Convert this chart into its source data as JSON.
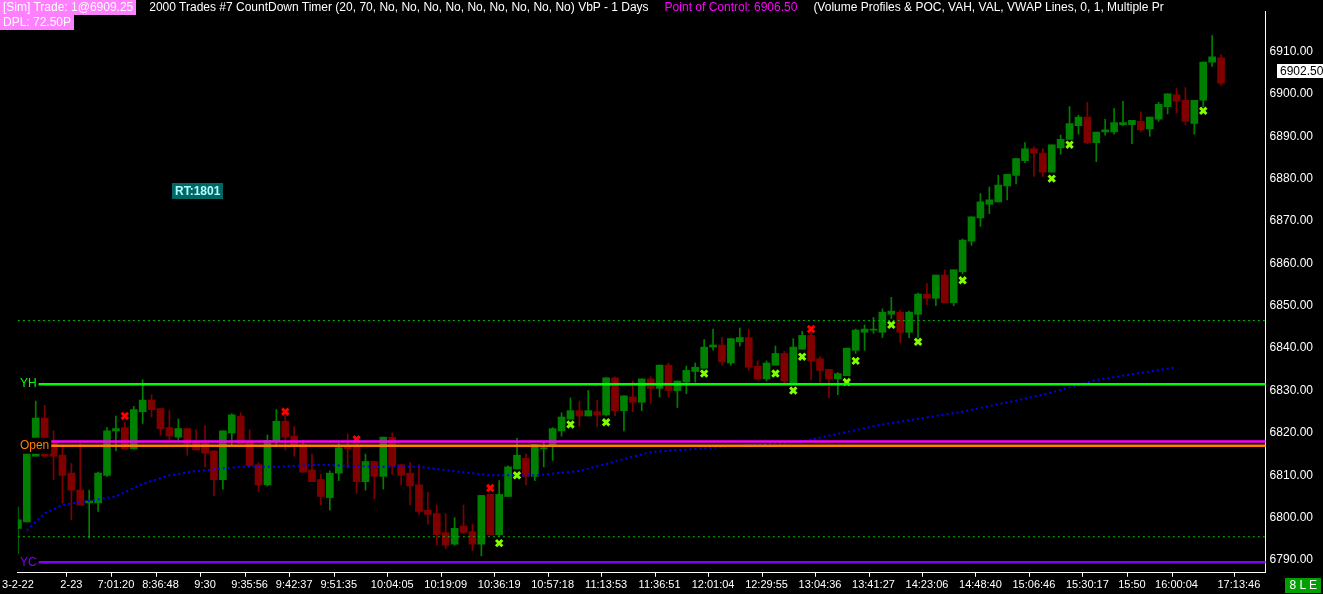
{
  "chart_data": {
    "type": "candlestick",
    "categories": [
      "3-2-22",
      null,
      null,
      null,
      null,
      null,
      "2-23",
      null,
      null,
      null,
      null,
      "7:01:20",
      null,
      null,
      null,
      null,
      "8:36:48",
      null,
      null,
      null,
      null,
      "9:30",
      null,
      null,
      null,
      null,
      "9:35:56",
      null,
      null,
      null,
      null,
      "9:42:37",
      null,
      null,
      null,
      null,
      "9:51:35",
      null,
      null,
      null,
      null,
      null,
      "10:04:05",
      null,
      null,
      null,
      null,
      null,
      "10:19:09",
      null,
      null,
      null,
      null,
      null,
      "10:36:19",
      null,
      null,
      null,
      null,
      null,
      "10:57:18",
      null,
      null,
      null,
      null,
      null,
      "11:13:53",
      null,
      null,
      null,
      null,
      null,
      "11:36:51",
      null,
      null,
      null,
      null,
      null,
      "12:01:04",
      null,
      null,
      null,
      null,
      null,
      "12:29:55",
      null,
      null,
      null,
      null,
      null,
      "13:04:36",
      null,
      null,
      null,
      null,
      null,
      "13:41:27",
      null,
      null,
      null,
      null,
      null,
      "14:23:06",
      null,
      null,
      null,
      null,
      null,
      "14:48:40",
      null,
      null,
      null,
      null,
      null,
      "15:06:46",
      null,
      null,
      null,
      null,
      null,
      "15:30:17",
      null,
      null,
      null,
      null,
      "15:50",
      null,
      null,
      null,
      null,
      "16:00:04",
      null,
      null,
      null,
      null,
      null,
      null,
      "17:13:46",
      null,
      null,
      null
    ],
    "series": [
      {
        "colors": [
          "#008000",
          "#008000",
          "#008000",
          "#800000",
          "#800000",
          "#800000",
          "#800000",
          "#800000",
          "#008000",
          "#008000",
          "#008000",
          "#008000",
          "#800000",
          "#008000",
          "#008000",
          "#800000",
          "#800000",
          "#800000",
          "#008000",
          "#800000",
          "#800000",
          "#800000",
          "#800000",
          "#008000",
          "#008000",
          "#800000",
          "#800000",
          "#800000",
          "#008000",
          "#008000",
          "#800000",
          "#800000",
          "#800000",
          "#800000",
          "#800000",
          "#008000",
          "#008000",
          "#800000",
          "#800000",
          "#008000",
          "#800000",
          "#008000",
          "#800000",
          "#800000",
          "#800000",
          "#800000",
          "#800000",
          "#800000",
          "#800000",
          "#008000",
          "#800000",
          "#800000",
          "#008000",
          "#800000",
          "#008000",
          "#008000",
          "#008000",
          "#800000",
          "#008000",
          "#008000",
          "#008000",
          "#008000",
          "#008000",
          "#800000",
          "#008000",
          "#800000",
          "#008000",
          "#800000",
          "#008000",
          "#800000",
          "#008000",
          "#800000",
          "#008000",
          "#800000",
          "#008000",
          "#008000",
          "#008000",
          "#008000",
          "#008000",
          "#800000",
          "#008000",
          "#008000",
          "#800000",
          "#800000",
          "#008000",
          "#008000",
          "#800000",
          "#008000",
          "#008000",
          "#800000",
          "#800000",
          "#800000",
          "#008000",
          "#008000",
          "#008000",
          "#008000",
          "#008000",
          "#008000",
          "#008000",
          "#800000",
          "#008000",
          "#008000",
          "#800000",
          "#008000",
          "#800000",
          "#008000",
          "#008000",
          "#008000",
          "#008000",
          "#008000",
          "#008000",
          "#008000",
          "#008000",
          "#008000",
          "#800000",
          "#800000",
          "#008000",
          "#008000",
          "#008000",
          "#008000",
          "#800000",
          "#008000",
          "#008000",
          "#008000",
          "#008000",
          "#008000",
          "#800000",
          "#008000",
          "#008000",
          "#008000",
          "#800000",
          "#800000",
          "#008000",
          "#008000",
          "#008000",
          "#800000",
          null,
          null,
          null,
          null,
          null
        ],
        "ohlc": [
          [
            6797.5,
            6802.5,
            6791,
            6799.5
          ],
          [
            6799,
            6815.5,
            6799,
            6815.5
          ],
          [
            6814.5,
            6827.5,
            6814.5,
            6823.5
          ],
          [
            6823.5,
            6826.5,
            6814.5,
            6814.5
          ],
          [
            6817.5,
            6820.5,
            6809,
            6814.5
          ],
          [
            6814.75,
            6816.75,
            6803.5,
            6810
          ],
          [
            6810.5,
            6812.75,
            6799.5,
            6806.5
          ],
          [
            6806.5,
            6817.5,
            6803,
            6803
          ],
          [
            6803.5,
            6806.5,
            6795.25,
            6804
          ],
          [
            6803.5,
            6810.75,
            6801.5,
            6810.5
          ],
          [
            6810,
            6821.25,
            6809.75,
            6820.5
          ],
          [
            6820.5,
            6824,
            6815.75,
            6821
          ],
          [
            6821.25,
            6822.5,
            6816.25,
            6816.25
          ],
          [
            6816.25,
            6826.25,
            6816.25,
            6825.5
          ],
          [
            6825,
            6832.5,
            6822.25,
            6827.75
          ],
          [
            6827.75,
            6829,
            6823.75,
            6825.5
          ],
          [
            6825.75,
            6825.75,
            6819.5,
            6821
          ],
          [
            6821.25,
            6825.25,
            6818.25,
            6819.25
          ],
          [
            6819,
            6823.25,
            6818.25,
            6821
          ],
          [
            6821,
            6821,
            6814.75,
            6817.5
          ],
          [
            6818,
            6820.75,
            6816,
            6816
          ],
          [
            6817.5,
            6821.75,
            6812,
            6815.25
          ],
          [
            6815.75,
            6815.75,
            6805.25,
            6809
          ],
          [
            6809,
            6820.5,
            6806.75,
            6820.5
          ],
          [
            6820,
            6824.5,
            6817.25,
            6824.25
          ],
          [
            6824,
            6824.75,
            6817.5,
            6817.5
          ],
          [
            6818,
            6820.75,
            6812.25,
            6812.25
          ],
          [
            6812.5,
            6813,
            6806.25,
            6807.75
          ],
          [
            6807.75,
            6819.5,
            6807.5,
            6818.25
          ],
          [
            6818,
            6825.5,
            6817.25,
            6822.75
          ],
          [
            6822.75,
            6824,
            6816,
            6819
          ],
          [
            6819.25,
            6821.5,
            6814.5,
            6817.25
          ],
          [
            6817.25,
            6818.25,
            6810.75,
            6810.75
          ],
          [
            6811.25,
            6815,
            6808.5,
            6808.5
          ],
          [
            6809,
            6810.25,
            6803,
            6805
          ],
          [
            6804.75,
            6811,
            6801.75,
            6810.5
          ],
          [
            6810.5,
            6817.5,
            6808.75,
            6816.5
          ],
          [
            6816.75,
            6819.75,
            6811.75,
            6816.25
          ],
          [
            6816.75,
            6817.5,
            6805.75,
            6808.5
          ],
          [
            6808.5,
            6815,
            6806.5,
            6813.25
          ],
          [
            6813.25,
            6813.25,
            6804.5,
            6809.75
          ],
          [
            6809.75,
            6819,
            6806.75,
            6819
          ],
          [
            6819,
            6820,
            6810.25,
            6812.25
          ],
          [
            6812.5,
            6812.5,
            6807.75,
            6810
          ],
          [
            6810.5,
            6813,
            6803,
            6807.5
          ],
          [
            6807.75,
            6812.5,
            6800.75,
            6801.5
          ],
          [
            6801.75,
            6806,
            6798.5,
            6800.75
          ],
          [
            6801,
            6803,
            6793.5,
            6796
          ],
          [
            6796.5,
            6801,
            6792.75,
            6793.5
          ],
          [
            6793.75,
            6800,
            6793.5,
            6797.5
          ],
          [
            6798,
            6803,
            6796.25,
            6796.5
          ],
          [
            6796.75,
            6798.5,
            6792.25,
            6793.75
          ],
          [
            6793.75,
            6805.25,
            6791,
            6805.25
          ],
          [
            6805.5,
            6805.5,
            6796,
            6796
          ],
          [
            6796,
            6808.75,
            6795.5,
            6805.5
          ],
          [
            6805,
            6812.25,
            6805,
            6812
          ],
          [
            6811.5,
            6818.75,
            6811.5,
            6814.75
          ],
          [
            6814,
            6815,
            6807.75,
            6809.75
          ],
          [
            6809.75,
            6817.25,
            6808.75,
            6817.25
          ],
          [
            6816.25,
            6818,
            6812,
            6816.5
          ],
          [
            6817.25,
            6821.25,
            6813.5,
            6821
          ],
          [
            6820.5,
            6824.75,
            6819.25,
            6823.75
          ],
          [
            6823.25,
            6828.25,
            6823.25,
            6825.25
          ],
          [
            6825.25,
            6827.5,
            6821.5,
            6824
          ],
          [
            6824,
            6830,
            6824,
            6825.25
          ],
          [
            6825,
            6827.75,
            6821.5,
            6824.25
          ],
          [
            6824.25,
            6833,
            6824,
            6833
          ],
          [
            6833,
            6833.25,
            6824,
            6825.25
          ],
          [
            6825.25,
            6828.75,
            6820.5,
            6828.75
          ],
          [
            6828.5,
            6832.25,
            6825,
            6827.25
          ],
          [
            6827.25,
            6832.75,
            6825.25,
            6832.75
          ],
          [
            6832.75,
            6833.25,
            6827,
            6830.5
          ],
          [
            6830.5,
            6836,
            6828.5,
            6836
          ],
          [
            6836,
            6836.5,
            6828.5,
            6830
          ],
          [
            6830,
            6832.25,
            6826,
            6832.25
          ],
          [
            6832,
            6835.75,
            6829.25,
            6834.75
          ],
          [
            6834.5,
            6836.5,
            6832,
            6835.5
          ],
          [
            6835.25,
            6842,
            6835.25,
            6840.25
          ],
          [
            6840.25,
            6844.5,
            6839.5,
            6840.75
          ],
          [
            6840.75,
            6842.5,
            6836,
            6836.75
          ],
          [
            6836.5,
            6842.25,
            6836,
            6842.25
          ],
          [
            6841.5,
            6844.75,
            6840.5,
            6842.5
          ],
          [
            6842.5,
            6844.5,
            6834.75,
            6835.5
          ],
          [
            6835.75,
            6837,
            6832.5,
            6832.75
          ],
          [
            6832.75,
            6837,
            6832.25,
            6836.5
          ],
          [
            6836,
            6840.5,
            6836,
            6838.75
          ],
          [
            6838.75,
            6839.25,
            6831.75,
            6832.25
          ],
          [
            6831.75,
            6842.25,
            6831.5,
            6840.25
          ],
          [
            6839.75,
            6844,
            6839.75,
            6843
          ],
          [
            6843,
            6843.75,
            6832.5,
            6837
          ],
          [
            6837.5,
            6838,
            6832,
            6834.75
          ],
          [
            6835,
            6835,
            6828.25,
            6832.75
          ],
          [
            6832.75,
            6834.25,
            6829,
            6834
          ],
          [
            6833.5,
            6840,
            6833.5,
            6840
          ],
          [
            6839.5,
            6844.5,
            6838.75,
            6844.25
          ],
          [
            6843.75,
            6845.5,
            6839.5,
            6844.5
          ],
          [
            6844.25,
            6847.25,
            6843.5,
            6844.5
          ],
          [
            6843.75,
            6849.25,
            6842.5,
            6848.5
          ],
          [
            6848,
            6852,
            6847,
            6848.75
          ],
          [
            6848.5,
            6849,
            6841.25,
            6843.75
          ],
          [
            6843.75,
            6848.75,
            6842.5,
            6848.5
          ],
          [
            6848,
            6853,
            6842.5,
            6852.75
          ],
          [
            6852.75,
            6855.25,
            6850.25,
            6851.75
          ],
          [
            6851.75,
            6857.25,
            6850,
            6857.25
          ],
          [
            6857.25,
            6858.5,
            6850.75,
            6850.75
          ],
          [
            6850.75,
            6858.5,
            6850,
            6858.5
          ],
          [
            6858,
            6865.75,
            6857.5,
            6865.5
          ],
          [
            6865.25,
            6871,
            6864.25,
            6871
          ],
          [
            6870.75,
            6876.5,
            6868.75,
            6874.5
          ],
          [
            6874,
            6878,
            6871.75,
            6875
          ],
          [
            6874.5,
            6880.75,
            6874.5,
            6878.5
          ],
          [
            6878.25,
            6881,
            6875,
            6881
          ],
          [
            6880.75,
            6884.75,
            6878.75,
            6884.75
          ],
          [
            6884.25,
            6888.5,
            6883.75,
            6887
          ],
          [
            6887,
            6887.5,
            6880.5,
            6886
          ],
          [
            6886,
            6887,
            6880.5,
            6881.5
          ],
          [
            6881.5,
            6888,
            6881.5,
            6888
          ],
          [
            6887.25,
            6890.25,
            6885.75,
            6889.25
          ],
          [
            6889.25,
            6897,
            6889.25,
            6893
          ],
          [
            6892.5,
            6895,
            6890.5,
            6894.5
          ],
          [
            6894.5,
            6898,
            6888.25,
            6888.5
          ],
          [
            6888.5,
            6891,
            6884,
            6891
          ],
          [
            6891,
            6894,
            6890.25,
            6891.5
          ],
          [
            6891,
            6896.5,
            6890.5,
            6893.25
          ],
          [
            6892.75,
            6898.25,
            6892.5,
            6893.25
          ],
          [
            6892.75,
            6893.75,
            6888.25,
            6893.75
          ],
          [
            6893.5,
            6895.75,
            6891,
            6891.5
          ],
          [
            6891.75,
            6894.5,
            6890,
            6894.5
          ],
          [
            6894,
            6898,
            6893.5,
            6897.5
          ],
          [
            6897,
            6900,
            6895.25,
            6900
          ],
          [
            6899.75,
            6901.25,
            6895.5,
            6898.25
          ],
          [
            6898.5,
            6901.5,
            6892.75,
            6893.5
          ],
          [
            6893,
            6898.5,
            6890.5,
            6898.5
          ],
          [
            6898.5,
            6907.5,
            6897,
            6907.5
          ],
          [
            6907.5,
            6913.75,
            6906.5,
            6908.75
          ],
          [
            6908.5,
            6909.25,
            6902,
            6902.5
          ],
          null,
          null,
          null,
          null,
          null
        ]
      },
      {
        "type": "line",
        "color": "#0000ff",
        "line_style": "dotted",
        "marker": "none",
        "values": [
          null,
          6797,
          null,
          6801,
          null,
          6803,
          null,
          null,
          6804,
          null,
          null,
          6805,
          null,
          null,
          6808,
          null,
          null,
          6810,
          null,
          null,
          6811,
          null,
          null,
          null,
          null,
          6812,
          null,
          null,
          null,
          6812,
          null,
          null,
          null,
          null,
          6812.5,
          null,
          null,
          null,
          null,
          null,
          6812,
          null,
          null,
          null,
          null,
          6812,
          null,
          null,
          null,
          6811,
          null,
          null,
          null,
          6810,
          null,
          null,
          null,
          null,
          6810,
          null,
          null,
          null,
          null,
          6811,
          null,
          null,
          null,
          null,
          null,
          null,
          null,
          6815.5,
          null,
          null,
          null,
          null,
          null,
          null,
          null,
          null,
          null,
          null,
          null,
          null,
          null,
          null,
          null,
          null,
          6818,
          null,
          null,
          null,
          null,
          null,
          null,
          null,
          null,
          6822,
          null,
          null,
          null,
          null,
          null,
          null,
          null,
          null,
          6825,
          null,
          null,
          null,
          null,
          null,
          null,
          null,
          null,
          6829,
          null,
          null,
          null,
          null,
          null,
          6832.5,
          null,
          null,
          null,
          null,
          null,
          null,
          null,
          null,
          6835.5,
          null,
          null,
          null,
          null,
          null,
          null,
          null,
          null,
          null,
          null
        ]
      },
      {
        "type": "scatter",
        "color": "#80ff00",
        "marker": "cross",
        "values": [
          null,
          null,
          null,
          null,
          null,
          null,
          null,
          null,
          null,
          null,
          null,
          null,
          null,
          null,
          null,
          null,
          null,
          null,
          null,
          null,
          null,
          null,
          null,
          null,
          null,
          null,
          null,
          null,
          null,
          null,
          null,
          null,
          null,
          null,
          null,
          null,
          null,
          null,
          null,
          null,
          null,
          null,
          null,
          null,
          null,
          null,
          null,
          null,
          null,
          null,
          null,
          null,
          null,
          null,
          6794,
          null,
          6810,
          null,
          null,
          null,
          null,
          null,
          6822,
          null,
          null,
          null,
          6822.5,
          null,
          null,
          null,
          null,
          null,
          null,
          null,
          null,
          null,
          null,
          6834,
          null,
          null,
          null,
          null,
          null,
          null,
          null,
          6834,
          null,
          6830,
          6838,
          null,
          null,
          null,
          null,
          6832,
          6837,
          null,
          null,
          null,
          6845.5,
          null,
          null,
          6841.5,
          null,
          null,
          null,
          null,
          6856,
          null,
          null,
          null,
          null,
          null,
          null,
          null,
          null,
          null,
          6880,
          null,
          6888,
          null,
          null,
          null,
          null,
          null,
          null,
          null,
          null,
          null,
          null,
          null,
          null,
          null,
          null,
          6896,
          null,
          null,
          null,
          null,
          null,
          null,
          null
        ]
      },
      {
        "type": "scatter",
        "color": "#ff0000",
        "marker": "cross",
        "values": [
          null,
          null,
          null,
          null,
          null,
          null,
          null,
          null,
          null,
          null,
          null,
          null,
          6824,
          null,
          null,
          null,
          null,
          null,
          null,
          null,
          null,
          null,
          null,
          null,
          null,
          null,
          null,
          null,
          null,
          null,
          6825,
          null,
          null,
          null,
          null,
          null,
          null,
          null,
          6818.5,
          null,
          null,
          null,
          null,
          null,
          null,
          null,
          null,
          null,
          null,
          null,
          null,
          null,
          null,
          6807,
          null,
          null,
          null,
          null,
          null,
          null,
          null,
          null,
          null,
          null,
          null,
          null,
          null,
          null,
          null,
          null,
          null,
          null,
          null,
          null,
          null,
          null,
          null,
          null,
          null,
          null,
          null,
          null,
          null,
          null,
          null,
          null,
          null,
          null,
          null,
          6844.5,
          null,
          null,
          null,
          null,
          null,
          null,
          null,
          null,
          null,
          null,
          null,
          null,
          null,
          null,
          null,
          null,
          null,
          null,
          null,
          null,
          null,
          null,
          null,
          null,
          null,
          null,
          null,
          null,
          null,
          null,
          null,
          null,
          null,
          null,
          null,
          null,
          null,
          null,
          null,
          null,
          null,
          null,
          null,
          null,
          null,
          null,
          null,
          null,
          null,
          null,
          null
        ]
      }
    ],
    "ylim": [
      6787,
      6919.5
    ],
    "yticks": [
      {
        "value": 6790,
        "label": "6790.00"
      },
      {
        "value": 6800,
        "label": "6800.00"
      },
      {
        "value": 6810,
        "label": "6810.00"
      },
      {
        "value": 6820,
        "label": "6820.00"
      },
      {
        "value": 6830,
        "label": "6830.00"
      },
      {
        "value": 6840,
        "label": "6840.00"
      },
      {
        "value": 6850,
        "label": "6850.00"
      },
      {
        "value": 6860,
        "label": "6860.00"
      },
      {
        "value": 6870,
        "label": "6870.00"
      },
      {
        "value": 6880,
        "label": "6880.00"
      },
      {
        "value": 6890,
        "label": "6890.00"
      },
      {
        "value": 6900,
        "label": "6900.00"
      },
      {
        "value": 6910,
        "label": "6910.00"
      }
    ],
    "ref_lines": [
      {
        "axis": "y",
        "value": 6846.5,
        "color": "#00c000",
        "line_style": "dotted"
      },
      {
        "axis": "y",
        "value": 6831.5,
        "label": "YH",
        "color": "#00ff00"
      },
      {
        "axis": "y",
        "value": 6818,
        "color": "#ff00ff"
      },
      {
        "axis": "y",
        "value": 6817,
        "label": "Open",
        "color": "#ff8000"
      },
      {
        "axis": "y",
        "value": 6795.5,
        "color": "#00c000",
        "line_style": "dotted"
      },
      {
        "axis": "y",
        "value": 6789.5,
        "label": "YC",
        "color": "#8000ff"
      }
    ],
    "annotations": [
      "[Sim]  Trade: 1@6909.25",
      "2000 Trades  #7 CountDown Timer  (20, 70, No, No, No, No, No, No, No, No, No)  VbP - 1 Days",
      "Point of Control: 6906.50",
      "(Volume Profiles & POC, VAH, VAL, VWAP Lines, 0, 1, Multiple Pr",
      "DPL: 72.50P",
      "RT:1801",
      "8 L E",
      "6902.50"
    ],
    "grid": false,
    "legend": false
  }
}
